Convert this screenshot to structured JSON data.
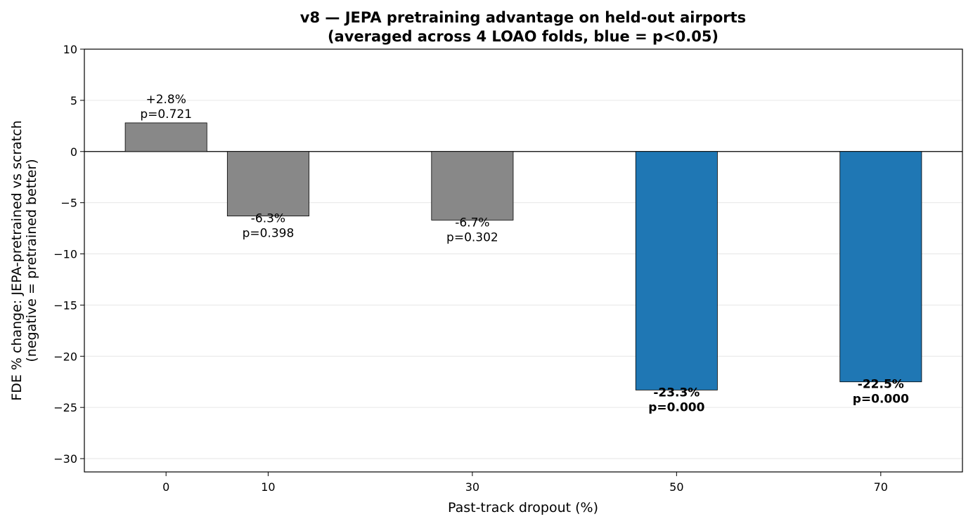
{
  "chart_data": {
    "type": "bar",
    "title_line1": "v8 — JEPA pretraining advantage on held-out airports",
    "title_line2": "(averaged across 4 LOAO folds, blue = p<0.05)",
    "xlabel": "Past-track dropout (%)",
    "ylabel_line1": "FDE % change: JEPA-pretrained vs scratch",
    "ylabel_line2": "(negative = pretrained better)",
    "x": [
      0,
      10,
      30,
      50,
      70
    ],
    "xlim": [
      -8,
      78
    ],
    "ylim": [
      -31.3,
      10
    ],
    "yticks": [
      10,
      5,
      0,
      -5,
      -10,
      -15,
      -20,
      -25,
      -30
    ],
    "bar_width": 8,
    "grid": true,
    "bars": [
      {
        "x": 0,
        "tick_label": "0",
        "value": 2.8,
        "value_label": "+2.8%",
        "p_label": "p=0.721",
        "significant": false
      },
      {
        "x": 10,
        "tick_label": "10",
        "value": -6.3,
        "value_label": "-6.3%",
        "p_label": "p=0.398",
        "significant": false
      },
      {
        "x": 30,
        "tick_label": "30",
        "value": -6.7,
        "value_label": "-6.7%",
        "p_label": "p=0.302",
        "significant": false
      },
      {
        "x": 50,
        "tick_label": "50",
        "value": -23.3,
        "value_label": "-23.3%",
        "p_label": "p=0.000",
        "significant": true
      },
      {
        "x": 70,
        "tick_label": "70",
        "value": -22.5,
        "value_label": "-22.5%",
        "p_label": "p=0.000",
        "significant": true
      }
    ],
    "colors": {
      "significant": "#1f77b4",
      "not_significant": "#888888",
      "edge": "#000000",
      "grid": "#e6e6e6"
    }
  }
}
